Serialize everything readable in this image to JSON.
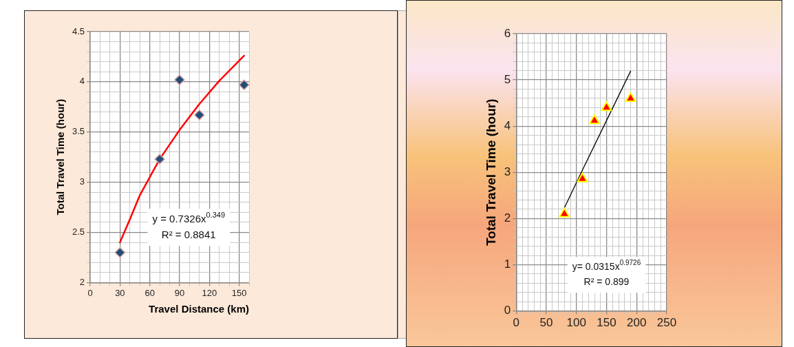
{
  "chart_data": [
    {
      "type": "scatter",
      "xlabel": "Travel Distance (km)",
      "ylabel": "Total Travel Time (hour)",
      "series": [
        {
          "type": "scatter",
          "marker": "diamond",
          "color": "#1f4e79",
          "x": [
            30,
            70,
            90,
            110,
            155
          ],
          "values": [
            2.3,
            3.23,
            4.02,
            3.67,
            3.97
          ]
        },
        {
          "type": "line",
          "marker": "none",
          "color": "#ff0000",
          "x": [
            30,
            40,
            50,
            70,
            90,
            110,
            130,
            155
          ],
          "values": [
            2.4,
            2.63,
            2.87,
            3.23,
            3.52,
            3.78,
            4.01,
            4.26
          ]
        }
      ],
      "xlim": [
        0,
        160
      ],
      "ylim": [
        2,
        4.5
      ],
      "xticks": [
        0,
        {
          "value": 10,
          "label": null
        },
        {
          "value": 20,
          "label": null
        },
        30,
        {
          "value": 40,
          "label": null
        },
        {
          "value": 50,
          "label": null
        },
        60,
        {
          "value": 70,
          "label": null
        },
        {
          "value": 80,
          "label": null
        },
        90,
        {
          "value": 100,
          "label": null
        },
        {
          "value": 110,
          "label": null
        },
        120,
        {
          "value": 130,
          "label": null
        },
        {
          "value": 140,
          "label": null
        },
        150,
        {
          "value": 160,
          "label": null
        }
      ],
      "yticks": [
        2,
        {
          "value": 2.1,
          "label": null
        },
        {
          "value": 2.2,
          "label": null
        },
        {
          "value": 2.3,
          "label": null
        },
        {
          "value": 2.4,
          "label": null
        },
        2.5,
        {
          "value": 2.6,
          "label": null
        },
        {
          "value": 2.7,
          "label": null
        },
        {
          "value": 2.8,
          "label": null
        },
        {
          "value": 2.9,
          "label": null
        },
        3,
        {
          "value": 3.1,
          "label": null
        },
        {
          "value": 3.2,
          "label": null
        },
        {
          "value": 3.3,
          "label": null
        },
        {
          "value": 3.4,
          "label": null
        },
        3.5,
        {
          "value": 3.6,
          "label": null
        },
        {
          "value": 3.7,
          "label": null
        },
        {
          "value": 3.8,
          "label": null
        },
        {
          "value": 3.9,
          "label": null
        },
        4,
        {
          "value": 4.1,
          "label": null
        },
        {
          "value": 4.2,
          "label": null
        },
        {
          "value": 4.3,
          "label": null
        },
        {
          "value": 4.4,
          "label": null
        },
        4.5
      ],
      "annotations": [
        "y = 0.7326x$^{0.349}$",
        "R² = 0.8841"
      ],
      "grid": true,
      "legend": false
    },
    {
      "type": "scatter",
      "ylabel": "Total Travel Time (hour)",
      "series": [
        {
          "type": "scatter",
          "marker": "triangle",
          "color": "#ff0000",
          "x": [
            80,
            110,
            130,
            150,
            190
          ],
          "values": [
            2.1,
            2.86,
            4.12,
            4.4,
            4.6
          ]
        },
        {
          "type": "line",
          "marker": "none",
          "color": "#000000",
          "x": [
            80,
            110,
            150,
            190
          ],
          "values": [
            2.23,
            3.05,
            4.12,
            5.19
          ]
        }
      ],
      "xlim": [
        0,
        250
      ],
      "ylim": [
        0,
        6
      ],
      "xticks": [
        0,
        {
          "value": 10,
          "label": null
        },
        {
          "value": 20,
          "label": null
        },
        {
          "value": 30,
          "label": null
        },
        {
          "value": 40,
          "label": null
        },
        50,
        {
          "value": 60,
          "label": null
        },
        {
          "value": 70,
          "label": null
        },
        {
          "value": 80,
          "label": null
        },
        {
          "value": 90,
          "label": null
        },
        100,
        {
          "value": 110,
          "label": null
        },
        {
          "value": 120,
          "label": null
        },
        {
          "value": 130,
          "label": null
        },
        {
          "value": 140,
          "label": null
        },
        150,
        {
          "value": 160,
          "label": null
        },
        {
          "value": 170,
          "label": null
        },
        {
          "value": 180,
          "label": null
        },
        {
          "value": 190,
          "label": null
        },
        200,
        {
          "value": 210,
          "label": null
        },
        {
          "value": 220,
          "label": null
        },
        {
          "value": 230,
          "label": null
        },
        {
          "value": 240,
          "label": null
        },
        250
      ],
      "yticks": [
        0,
        {
          "value": 0.2,
          "label": null
        },
        {
          "value": 0.4,
          "label": null
        },
        {
          "value": 0.6,
          "label": null
        },
        {
          "value": 0.8,
          "label": null
        },
        1,
        {
          "value": 1.2,
          "label": null
        },
        {
          "value": 1.4,
          "label": null
        },
        {
          "value": 1.6,
          "label": null
        },
        {
          "value": 1.8,
          "label": null
        },
        2,
        {
          "value": 2.2,
          "label": null
        },
        {
          "value": 2.4,
          "label": null
        },
        {
          "value": 2.6,
          "label": null
        },
        {
          "value": 2.8,
          "label": null
        },
        3,
        {
          "value": 3.2,
          "label": null
        },
        {
          "value": 3.4,
          "label": null
        },
        {
          "value": 3.6,
          "label": null
        },
        {
          "value": 3.8,
          "label": null
        },
        4,
        {
          "value": 4.2,
          "label": null
        },
        {
          "value": 4.4,
          "label": null
        },
        {
          "value": 4.6,
          "label": null
        },
        {
          "value": 4.8,
          "label": null
        },
        5,
        {
          "value": 5.2,
          "label": null
        },
        {
          "value": 5.4,
          "label": null
        },
        {
          "value": 5.6,
          "label": null
        },
        {
          "value": 5.8,
          "label": null
        },
        6
      ],
      "annotations": [
        "y= 0.0315x$^{0.9726}$",
        "R² = 0.899"
      ],
      "grid": true,
      "legend": false
    }
  ]
}
